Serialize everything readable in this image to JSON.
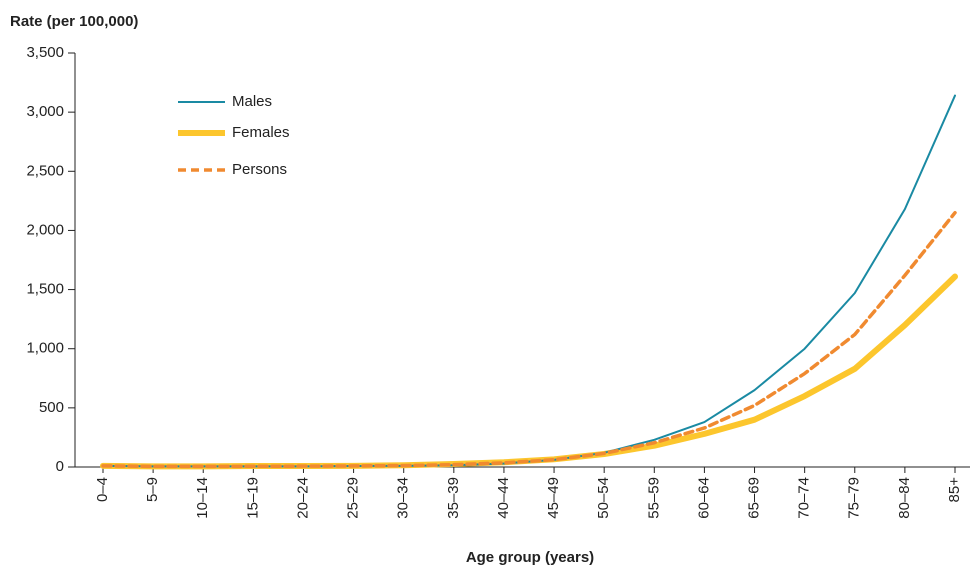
{
  "chart_data": {
    "type": "line",
    "y_axis_label": "Rate (per 100,000)",
    "x_axis_label": "Age group (years)",
    "categories": [
      "0–4",
      "5–9",
      "10–14",
      "15–19",
      "20–24",
      "25–29",
      "30–34",
      "35–39",
      "40–44",
      "45–49",
      "50–54",
      "55–59",
      "60–64",
      "65–69",
      "70–74",
      "75–79",
      "80–84",
      "85+"
    ],
    "series": [
      {
        "name": "Males",
        "color": "#1a8aa3",
        "values": [
          10,
          5,
          5,
          5,
          5,
          8,
          10,
          15,
          30,
          60,
          120,
          230,
          380,
          650,
          1000,
          1470,
          2180,
          3140
        ]
      },
      {
        "name": "Females",
        "color": "#fcc62d",
        "values": [
          10,
          5,
          5,
          8,
          8,
          10,
          15,
          25,
          40,
          65,
          110,
          180,
          280,
          400,
          600,
          830,
          1200,
          1610
        ]
      },
      {
        "name": "Persons",
        "color": "#f08a30",
        "values": [
          10,
          5,
          5,
          6,
          7,
          9,
          12,
          20,
          35,
          62,
          115,
          205,
          330,
          520,
          790,
          1120,
          1620,
          2150
        ]
      }
    ],
    "ylim": [
      0,
      3500
    ],
    "yticks": [
      0,
      500,
      {
        "value": 1000,
        "label": "1,000"
      },
      {
        "value": 1500,
        "label": "1,500"
      },
      {
        "value": 2000,
        "label": "2,000"
      },
      {
        "value": 2500,
        "label": "2,500"
      },
      {
        "value": 3000,
        "label": "3,000"
      },
      {
        "value": 3500,
        "label": "3,500"
      }
    ],
    "grid": false,
    "legend": "upper left"
  }
}
